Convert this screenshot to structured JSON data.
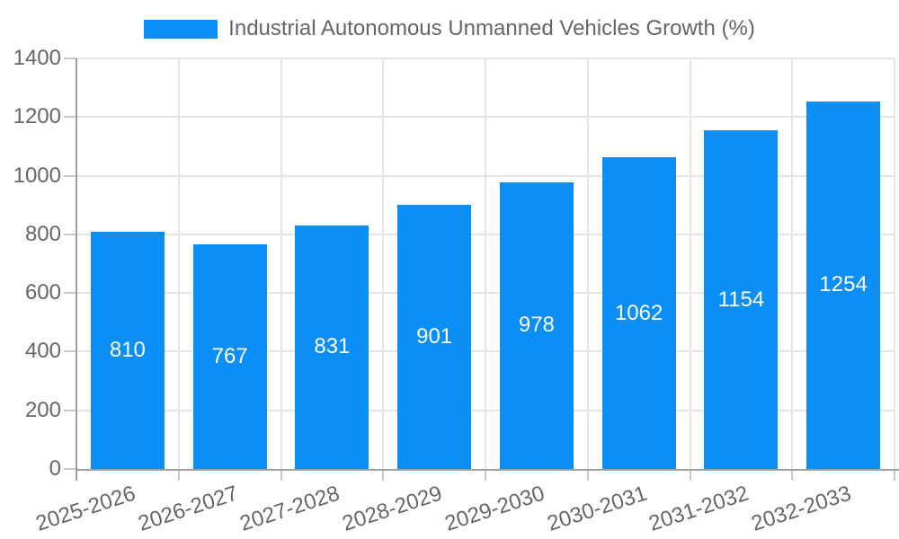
{
  "legend": {
    "label": "Industrial Autonomous Unmanned Vehicles Growth (%)"
  },
  "chart_data": {
    "type": "bar",
    "title": "Industrial Autonomous Unmanned Vehicles Growth (%)",
    "categories": [
      "2025-2026",
      "2026-2027",
      "2027-2028",
      "2028-2029",
      "2029-2030",
      "2030-2031",
      "2031-2032",
      "2032-2033"
    ],
    "values": [
      810,
      767,
      831,
      901,
      978,
      1062,
      1154,
      1254
    ],
    "value_labels": [
      "810",
      "767",
      "831",
      "901",
      "978",
      "1062",
      "1154",
      "1254"
    ],
    "xlabel": "",
    "ylabel": "",
    "ylim": [
      0,
      1400
    ],
    "ytick_step": 200,
    "ytick_labels": [
      "0",
      "200",
      "400",
      "600",
      "800",
      "1000",
      "1200",
      "1400"
    ],
    "grid": "on",
    "legend_position": "top-center",
    "colors": {
      "bar": "#0b8ef6",
      "value_label": "#ffffff",
      "axis_text": "#666666",
      "gridline": "#e5e5e5",
      "axis_line": "#9e9e9e",
      "tick": "#c9c9c9",
      "background": "#ffffff"
    }
  }
}
